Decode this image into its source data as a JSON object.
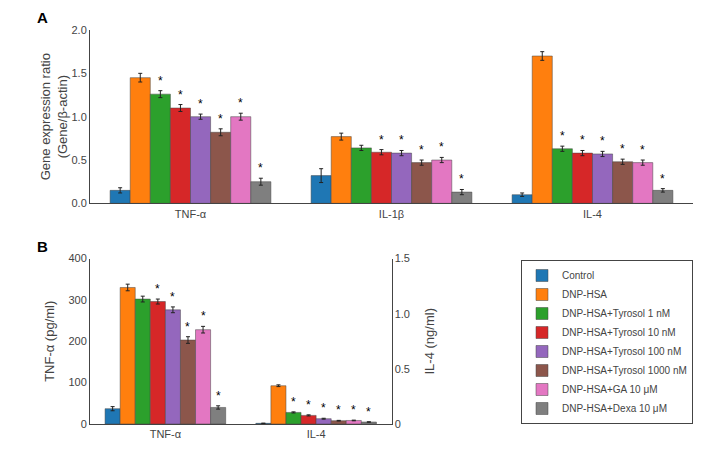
{
  "chart_data": [
    {
      "type": "bar",
      "title": "A",
      "categories": [
        "TNF-α",
        "IL-1β",
        "IL-4"
      ],
      "ylabel": "Gene expression ratio\n(Gene/β-actin)",
      "ylim": [
        0,
        2.0
      ],
      "yticks": [
        {
          "value": 0,
          "label": "0.0"
        },
        0.5,
        {
          "value": 1.0,
          "label": "1.0"
        },
        1.5,
        {
          "value": 2.0,
          "label": "2.0"
        }
      ],
      "grid": false,
      "series": [
        {
          "name": "Control",
          "color": "#1f77b4",
          "values": [
            0.15,
            0.32,
            0.1
          ],
          "errors": [
            0.03,
            0.08,
            0.02
          ],
          "annotations": [
            null,
            null,
            null
          ]
        },
        {
          "name": "DNP-HSA",
          "color": "#ff7f0e",
          "values": [
            1.45,
            0.77,
            1.7
          ],
          "errors": [
            0.05,
            0.04,
            0.05
          ],
          "annotations": [
            null,
            null,
            null
          ]
        },
        {
          "name": "DNP-HSA+Tyrosol 1 nM",
          "color": "#2ca02c",
          "values": [
            1.26,
            0.64,
            0.63
          ],
          "errors": [
            0.04,
            0.03,
            0.03
          ],
          "annotations": [
            "*",
            null,
            "*"
          ]
        },
        {
          "name": "DNP-HSA+Tyrosol 10 nM",
          "color": "#d62728",
          "values": [
            1.1,
            0.59,
            0.58
          ],
          "errors": [
            0.04,
            0.03,
            0.03
          ],
          "annotations": [
            "*",
            "*",
            "*"
          ]
        },
        {
          "name": "DNP-HSA+Tyrosol 100 nM",
          "color": "#9467bd",
          "values": [
            1.0,
            0.58,
            0.57
          ],
          "errors": [
            0.03,
            0.03,
            0.03
          ],
          "annotations": [
            "*",
            "*",
            "*"
          ]
        },
        {
          "name": "DNP-HSA+Tyrosol 1000 nM",
          "color": "#8c564b",
          "values": [
            0.82,
            0.47,
            0.48
          ],
          "errors": [
            0.04,
            0.03,
            0.03
          ],
          "annotations": [
            "*",
            "*",
            "*"
          ]
        },
        {
          "name": "DNP-HSA+GA 10 μM",
          "color": "#e377c2",
          "values": [
            1.0,
            0.5,
            0.47
          ],
          "errors": [
            0.04,
            0.03,
            0.03
          ],
          "annotations": [
            "*",
            "*",
            "*"
          ]
        },
        {
          "name": "DNP-HSA+Dexa 10 μM",
          "color": "#7f7f7f",
          "values": [
            0.25,
            0.13,
            0.15
          ],
          "errors": [
            0.04,
            0.03,
            0.02
          ],
          "annotations": [
            "*",
            "*",
            "*"
          ]
        }
      ]
    },
    {
      "type": "bar",
      "title": "B",
      "categories": [
        "TNF-α",
        "IL-4"
      ],
      "ylabel": "TNF-α (pg/ml)",
      "y2label": "IL-4 (ng/ml)",
      "ylim": [
        0,
        400
      ],
      "yticks": [
        0,
        100,
        200,
        300,
        400
      ],
      "y2lim": [
        0,
        1.5
      ],
      "y2ticks": [
        0,
        0.5,
        {
          "value": 1.0,
          "label": "1.0"
        },
        1.5
      ],
      "grid": false,
      "legend": "lower right",
      "series": [
        {
          "name": "Control",
          "color": "#1f77b4",
          "values": [
            37,
            null
          ],
          "errors": [
            5,
            null
          ],
          "annotations": [
            null,
            null
          ]
        },
        {
          "name": "DNP-HSA",
          "color": "#ff7f0e",
          "values": [
            330,
            null
          ],
          "errors": [
            8,
            null
          ],
          "annotations": [
            null,
            null
          ]
        },
        {
          "name": "DNP-HSA+Tyrosol 1 nM",
          "color": "#2ca02c",
          "values": [
            302,
            null
          ],
          "errors": [
            7,
            null
          ],
          "annotations": [
            null,
            null
          ]
        },
        {
          "name": "DNP-HSA+Tyrosol 10 nM",
          "color": "#d62728",
          "values": [
            296,
            null
          ],
          "errors": [
            6,
            null
          ],
          "annotations": [
            "*",
            null
          ]
        },
        {
          "name": "DNP-HSA+Tyrosol 100 nM",
          "color": "#9467bd",
          "values": [
            276,
            null
          ],
          "errors": [
            7,
            null
          ],
          "annotations": [
            "*",
            null
          ]
        },
        {
          "name": "DNP-HSA+Tyrosol 1000 nM",
          "color": "#8c564b",
          "values": [
            203,
            null
          ],
          "errors": [
            8,
            null
          ],
          "annotations": [
            "*",
            null
          ]
        },
        {
          "name": "DNP-HSA+GA 10 μM",
          "color": "#e377c2",
          "values": [
            228,
            null
          ],
          "errors": [
            8,
            null
          ],
          "annotations": [
            "*",
            null
          ]
        },
        {
          "name": "DNP-HSA+Dexa 10 μM",
          "color": "#7f7f7f",
          "values": [
            40,
            null
          ],
          "errors": [
            4,
            null
          ],
          "annotations": [
            "*",
            null
          ]
        },
        {
          "name": "Control",
          "color": "#1f77b4",
          "axis": "y2",
          "values": [
            null,
            0.006
          ],
          "errors": [
            null,
            0.002
          ],
          "annotations": [
            null,
            null
          ]
        },
        {
          "name": "DNP-HSA",
          "color": "#ff7f0e",
          "axis": "y2",
          "values": [
            null,
            0.347
          ],
          "errors": [
            null,
            0.008
          ],
          "annotations": [
            null,
            null
          ]
        },
        {
          "name": "DNP-HSA+Tyrosol 1 nM",
          "color": "#2ca02c",
          "axis": "y2",
          "values": [
            null,
            0.105
          ],
          "errors": [
            null,
            0.005
          ],
          "annotations": [
            null,
            "*"
          ]
        },
        {
          "name": "DNP-HSA+Tyrosol 10 nM",
          "color": "#d62728",
          "axis": "y2",
          "values": [
            null,
            0.078
          ],
          "errors": [
            null,
            0.005
          ],
          "annotations": [
            null,
            "*"
          ]
        },
        {
          "name": "DNP-HSA+Tyrosol 100 nM",
          "color": "#9467bd",
          "axis": "y2",
          "values": [
            null,
            0.048
          ],
          "errors": [
            null,
            0.004
          ],
          "annotations": [
            null,
            "*"
          ]
        },
        {
          "name": "DNP-HSA+Tyrosol 1000 nM",
          "color": "#8c564b",
          "axis": "y2",
          "values": [
            null,
            0.03
          ],
          "errors": [
            null,
            0.003
          ],
          "annotations": [
            null,
            "*"
          ]
        },
        {
          "name": "DNP-HSA+GA 10 μM",
          "color": "#e377c2",
          "axis": "y2",
          "values": [
            null,
            0.032
          ],
          "errors": [
            null,
            0.003
          ],
          "annotations": [
            null,
            "*"
          ]
        },
        {
          "name": "DNP-HSA+Dexa 10 μM",
          "color": "#7f7f7f",
          "axis": "y2",
          "values": [
            null,
            0.018
          ],
          "errors": [
            null,
            0.002
          ],
          "annotations": [
            null,
            "*"
          ]
        }
      ]
    }
  ]
}
